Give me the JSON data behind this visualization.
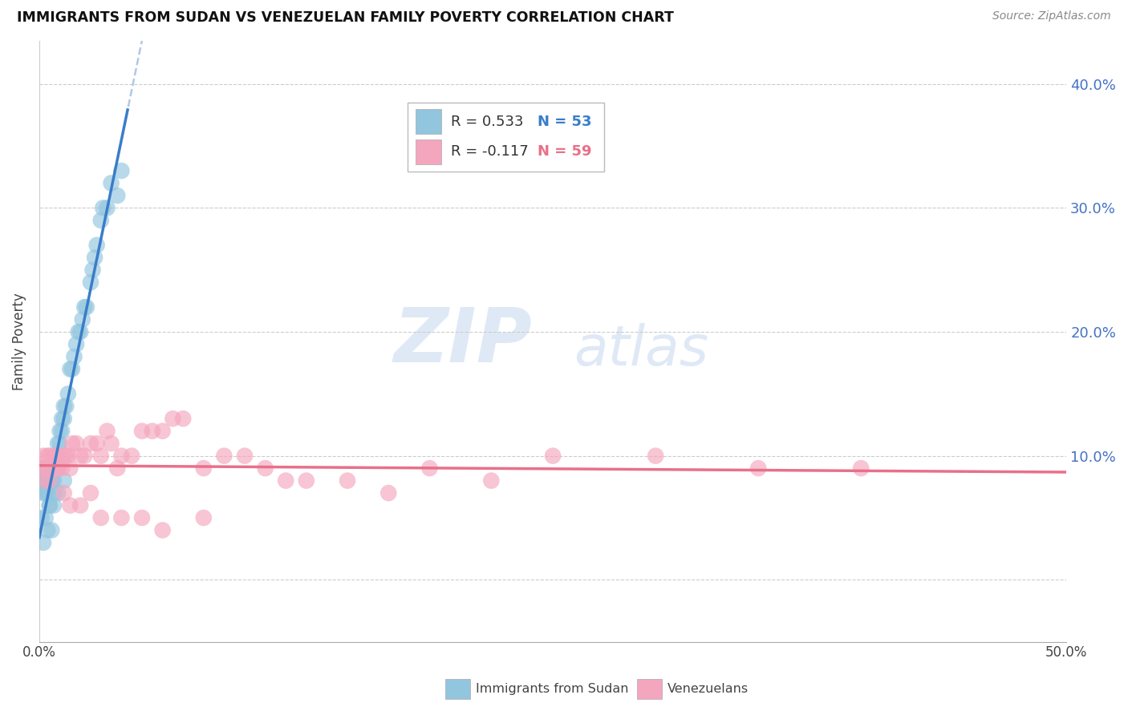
{
  "title": "IMMIGRANTS FROM SUDAN VS VENEZUELAN FAMILY POVERTY CORRELATION CHART",
  "source": "Source: ZipAtlas.com",
  "ylabel": "Family Poverty",
  "legend_label1": "Immigrants from Sudan",
  "legend_label2": "Venezuelans",
  "legend_R1": "R = 0.533",
  "legend_N1": "N = 53",
  "legend_R2": "R = -0.117",
  "legend_N2": "N = 59",
  "xlim": [
    0,
    0.5
  ],
  "ylim": [
    -0.05,
    0.435
  ],
  "yticks": [
    0.0,
    0.1,
    0.2,
    0.3,
    0.4
  ],
  "ytick_labels": [
    "",
    "10.0%",
    "20.0%",
    "30.0%",
    "40.0%"
  ],
  "xticks": [
    0.0,
    0.1,
    0.2,
    0.3,
    0.4,
    0.5
  ],
  "xtick_labels": [
    "0.0%",
    "",
    "",
    "",
    "",
    "50.0%"
  ],
  "color_sudan": "#92c5de",
  "color_venezuela": "#f4a6be",
  "color_line_sudan": "#3a7dc9",
  "color_line_venezuela": "#e8708a",
  "color_dashed": "#b0c8e8",
  "watermark_zip": "ZIP",
  "watermark_atlas": "atlas",
  "sudan_x": [
    0.001,
    0.002,
    0.002,
    0.003,
    0.003,
    0.004,
    0.004,
    0.005,
    0.005,
    0.006,
    0.006,
    0.007,
    0.007,
    0.008,
    0.008,
    0.009,
    0.009,
    0.01,
    0.01,
    0.011,
    0.011,
    0.012,
    0.012,
    0.013,
    0.014,
    0.015,
    0.016,
    0.017,
    0.018,
    0.019,
    0.02,
    0.021,
    0.022,
    0.023,
    0.025,
    0.026,
    0.027,
    0.028,
    0.03,
    0.031,
    0.033,
    0.035,
    0.038,
    0.04,
    0.001,
    0.003,
    0.005,
    0.007,
    0.009,
    0.012,
    0.002,
    0.004,
    0.006
  ],
  "sudan_y": [
    0.08,
    0.07,
    0.09,
    0.07,
    0.08,
    0.07,
    0.09,
    0.08,
    0.06,
    0.09,
    0.08,
    0.08,
    0.07,
    0.09,
    0.1,
    0.09,
    0.11,
    0.11,
    0.12,
    0.12,
    0.13,
    0.13,
    0.14,
    0.14,
    0.15,
    0.17,
    0.17,
    0.18,
    0.19,
    0.2,
    0.2,
    0.21,
    0.22,
    0.22,
    0.24,
    0.25,
    0.26,
    0.27,
    0.29,
    0.3,
    0.3,
    0.32,
    0.31,
    0.33,
    0.05,
    0.05,
    0.06,
    0.06,
    0.07,
    0.08,
    0.03,
    0.04,
    0.04
  ],
  "venezuela_x": [
    0.001,
    0.002,
    0.003,
    0.004,
    0.005,
    0.006,
    0.007,
    0.008,
    0.009,
    0.01,
    0.011,
    0.012,
    0.013,
    0.014,
    0.015,
    0.016,
    0.018,
    0.02,
    0.022,
    0.025,
    0.028,
    0.03,
    0.033,
    0.035,
    0.038,
    0.04,
    0.045,
    0.05,
    0.055,
    0.06,
    0.065,
    0.07,
    0.08,
    0.09,
    0.1,
    0.11,
    0.12,
    0.13,
    0.15,
    0.17,
    0.19,
    0.22,
    0.25,
    0.3,
    0.35,
    0.4,
    0.003,
    0.005,
    0.007,
    0.009,
    0.012,
    0.015,
    0.02,
    0.025,
    0.03,
    0.04,
    0.05,
    0.06,
    0.08
  ],
  "venezuela_y": [
    0.09,
    0.1,
    0.09,
    0.1,
    0.1,
    0.09,
    0.1,
    0.1,
    0.09,
    0.1,
    0.09,
    0.1,
    0.1,
    0.1,
    0.09,
    0.11,
    0.11,
    0.1,
    0.1,
    0.11,
    0.11,
    0.1,
    0.12,
    0.11,
    0.09,
    0.1,
    0.1,
    0.12,
    0.12,
    0.12,
    0.13,
    0.13,
    0.09,
    0.1,
    0.1,
    0.09,
    0.08,
    0.08,
    0.08,
    0.07,
    0.09,
    0.08,
    0.1,
    0.1,
    0.09,
    0.09,
    0.08,
    0.08,
    0.09,
    0.09,
    0.07,
    0.06,
    0.06,
    0.07,
    0.05,
    0.05,
    0.05,
    0.04,
    0.05
  ]
}
